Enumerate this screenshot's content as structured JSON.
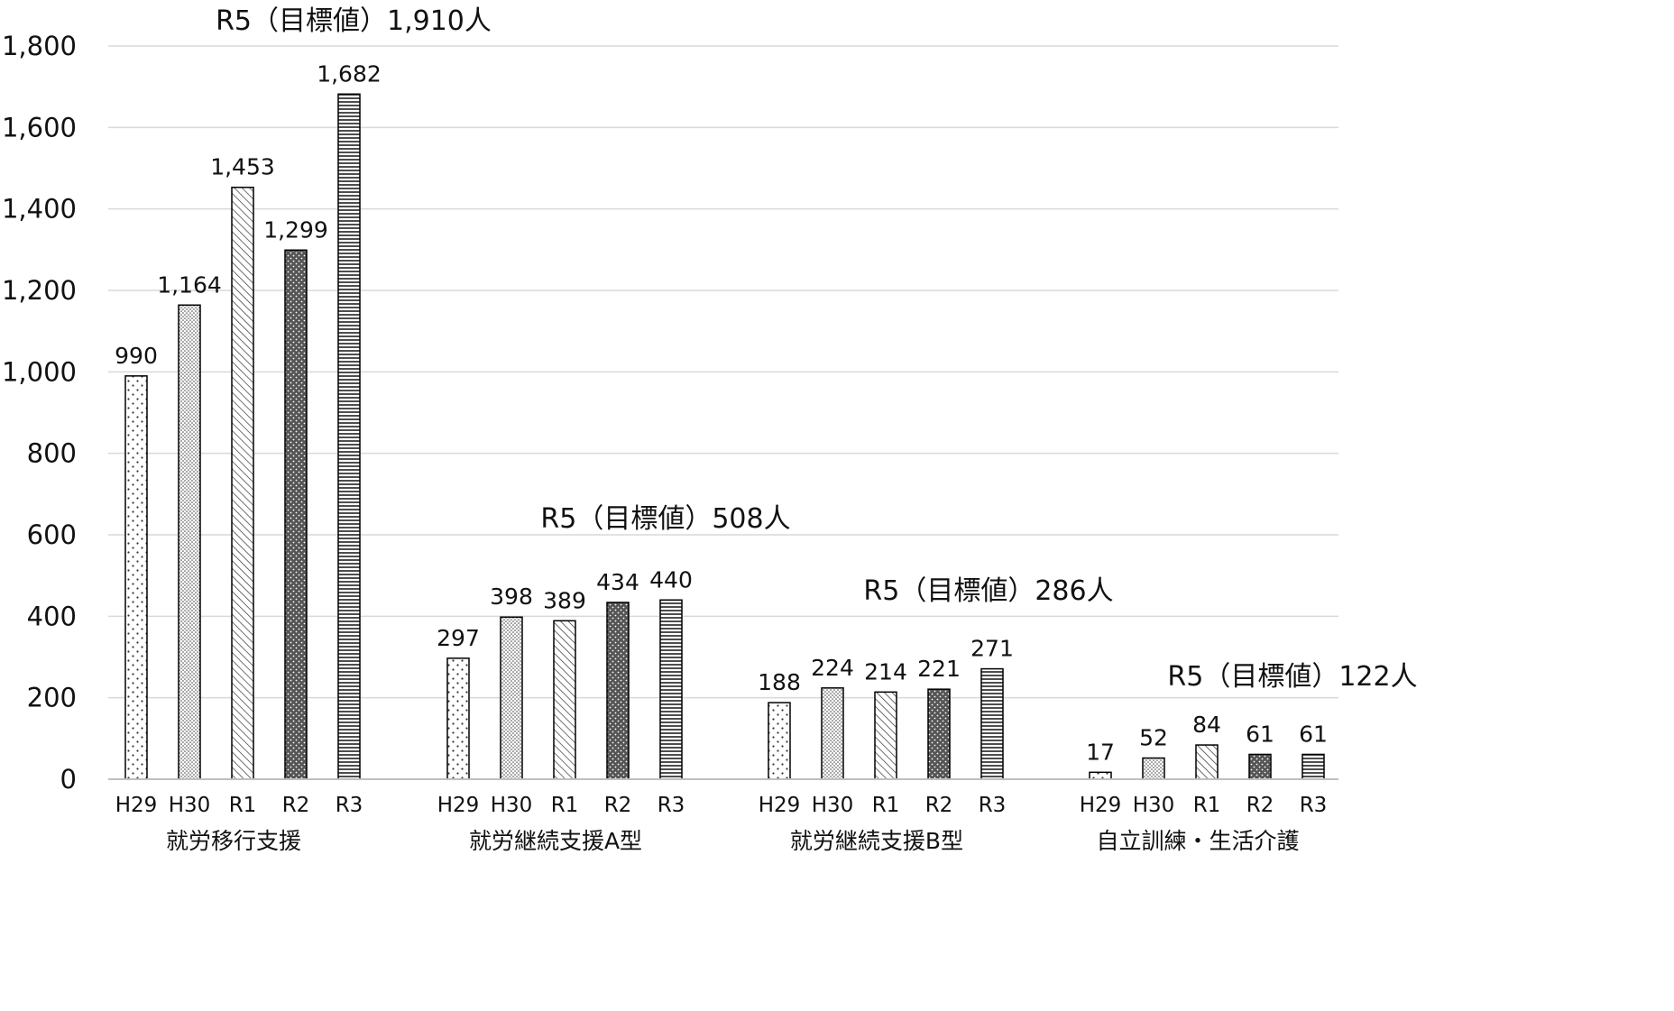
{
  "chart_data": {
    "type": "bar",
    "ylim": [
      0,
      1800
    ],
    "yticks": [
      "0",
      "200",
      "400",
      "600",
      "800",
      "1,000",
      "1,200",
      "1,400",
      "1,600",
      "1,800"
    ],
    "grid": true,
    "groups": [
      {
        "name": "就労移行支援",
        "categories": [
          "H29",
          "H30",
          "R1",
          "R2",
          "R3"
        ],
        "values": [
          990,
          1164,
          1453,
          1299,
          1682
        ],
        "labels": [
          "990",
          "1,164",
          "1,453",
          "1,299",
          "1,682"
        ],
        "target": "R5（目標値）1,910人"
      },
      {
        "name": "就労継続支援A型",
        "categories": [
          "H29",
          "H30",
          "R1",
          "R2",
          "R3"
        ],
        "values": [
          297,
          398,
          389,
          434,
          440
        ],
        "labels": [
          "297",
          "398",
          "389",
          "434",
          "440"
        ],
        "target": "R5（目標値）508人"
      },
      {
        "name": "就労継続支援B型",
        "categories": [
          "H29",
          "H30",
          "R1",
          "R2",
          "R3"
        ],
        "values": [
          188,
          224,
          214,
          221,
          271
        ],
        "labels": [
          "188",
          "224",
          "214",
          "221",
          "271"
        ],
        "target": "R5（目標値）286人"
      },
      {
        "name": "自立訓練・生活介護",
        "categories": [
          "H29",
          "H30",
          "R1",
          "R2",
          "R3"
        ],
        "values": [
          17,
          52,
          84,
          61,
          61
        ],
        "labels": [
          "17",
          "52",
          "84",
          "61",
          "61"
        ],
        "target": "R5（目標値）122人"
      }
    ],
    "patterns": [
      "dots-sparse",
      "dots-dense",
      "diagonal-stripes",
      "dark-dots",
      "horizontal-stripes"
    ],
    "colors": {
      "grid": "#d9d9d9",
      "axis": "#bfbfbf",
      "bar_outline": "#000000",
      "dark_fill": "#555555"
    }
  }
}
